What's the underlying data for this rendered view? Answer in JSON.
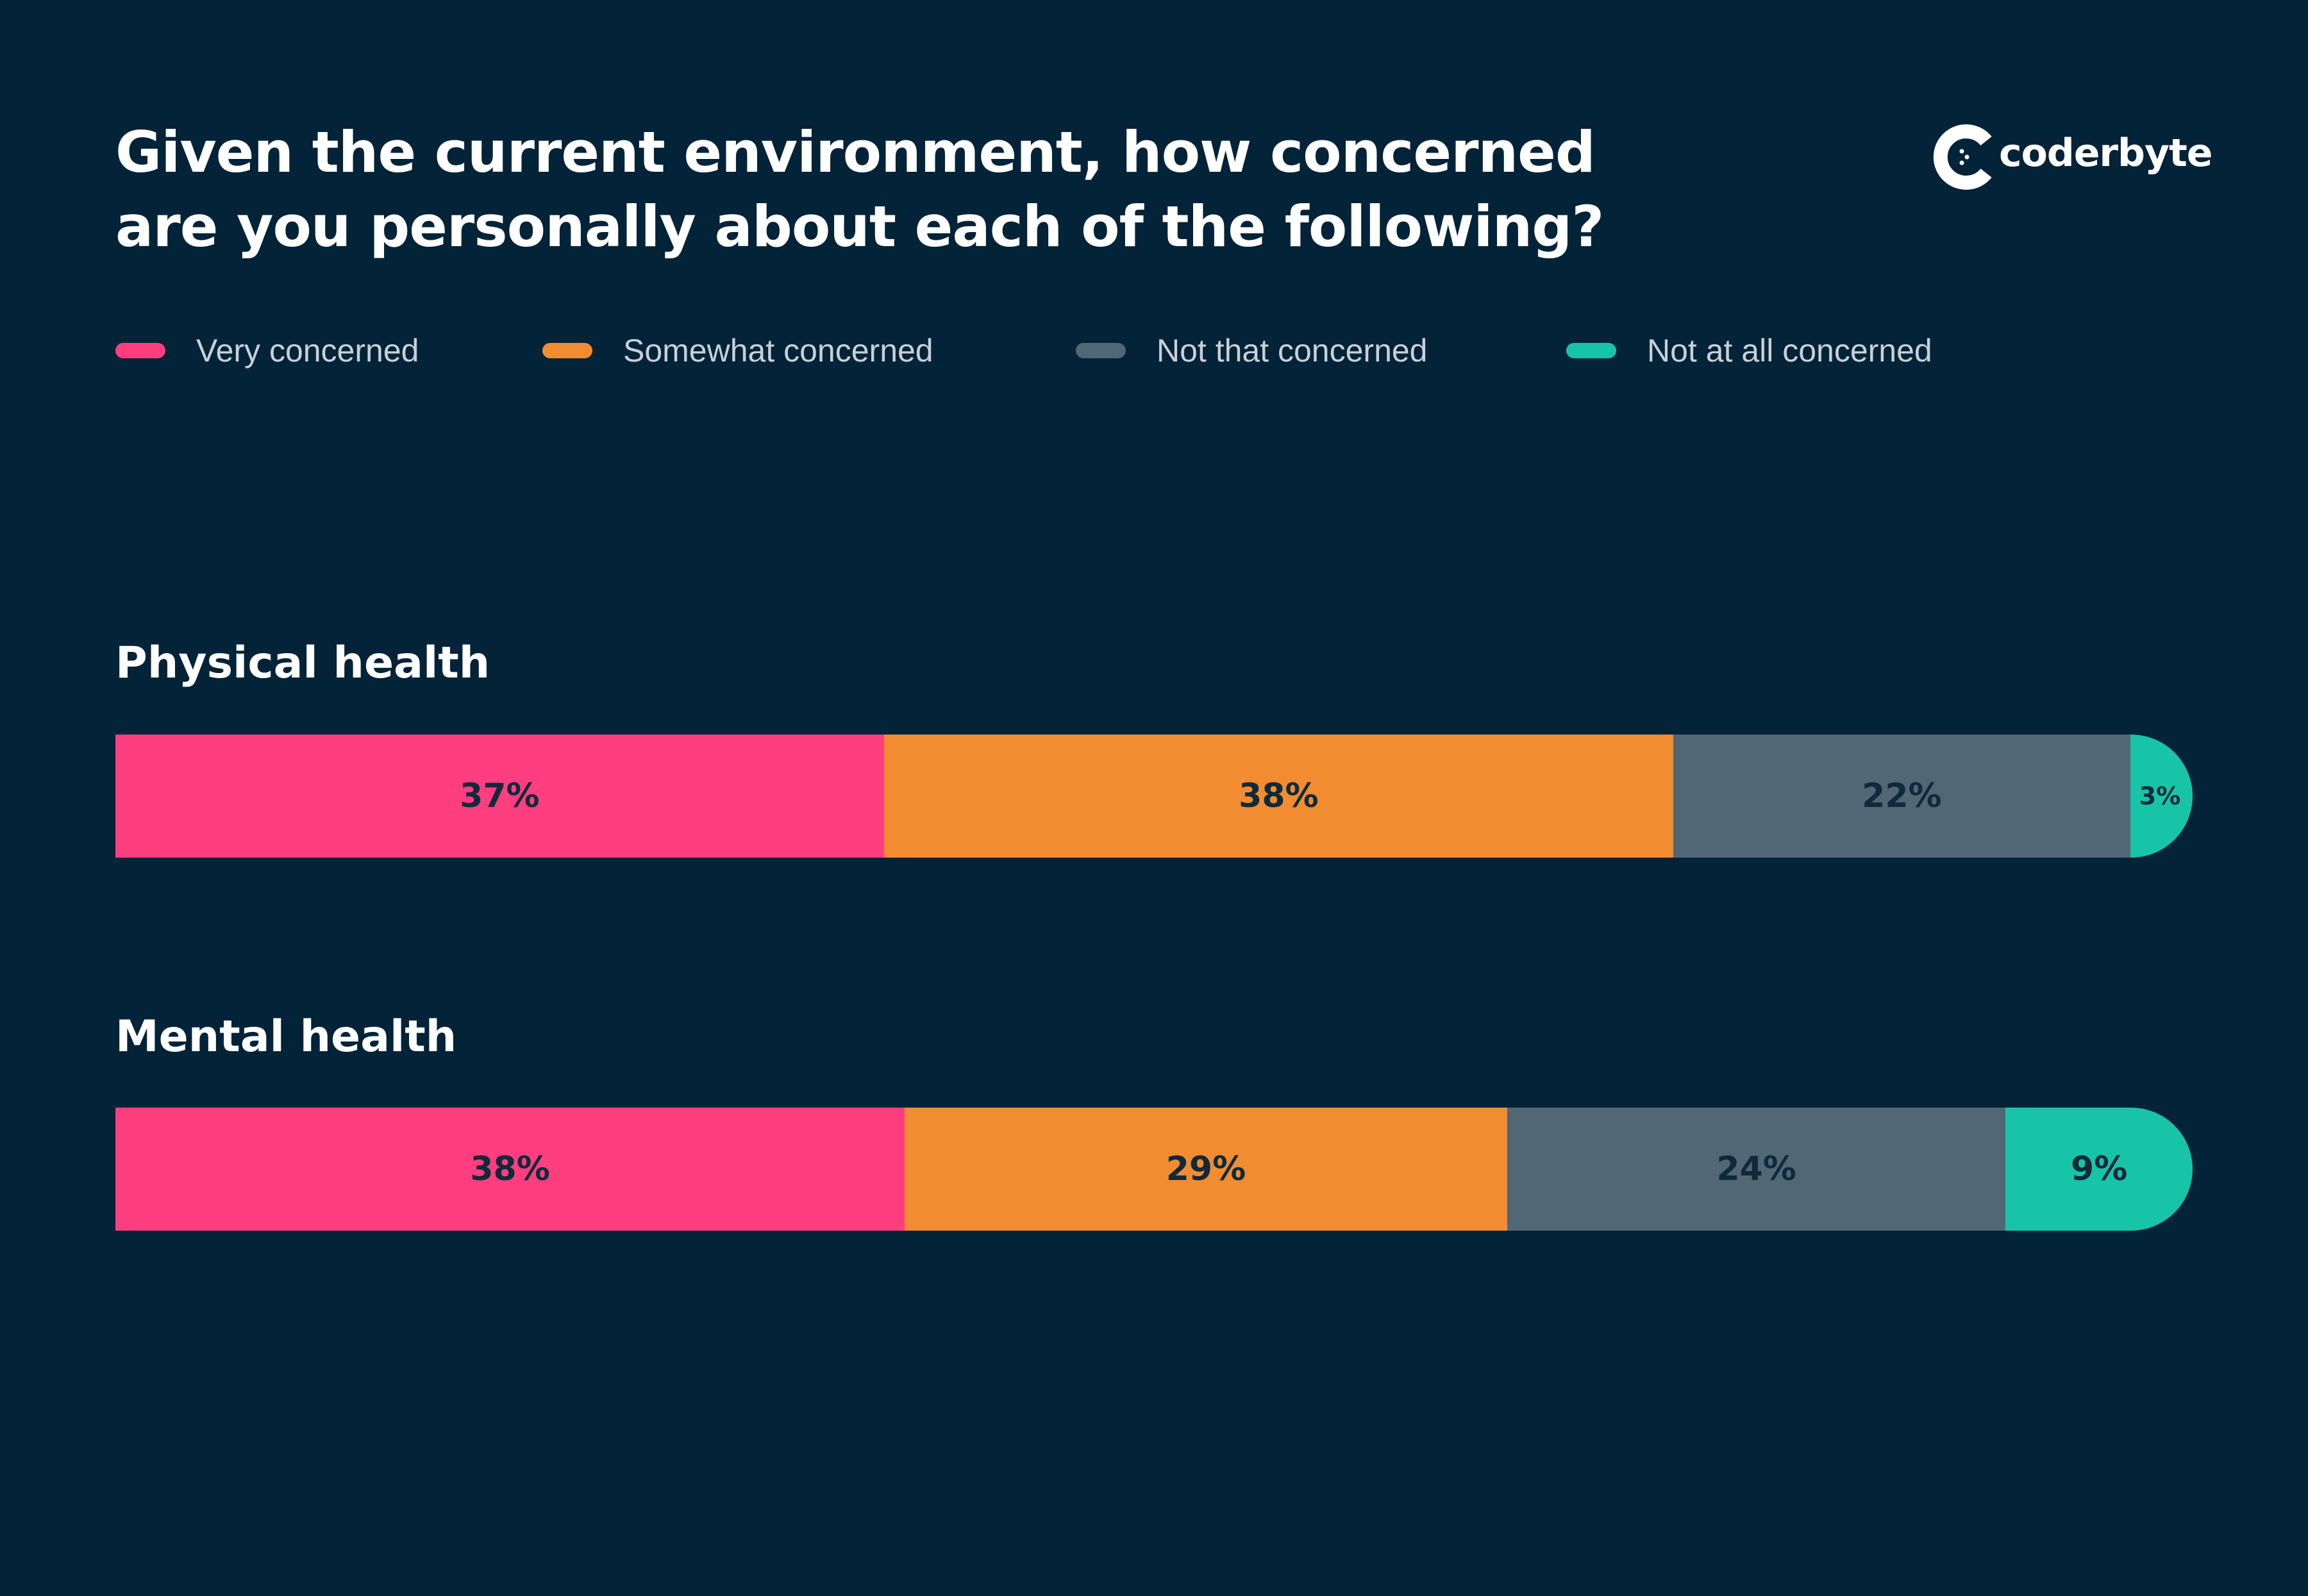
{
  "title_lines": [
    "Given the current environment, how concerned",
    "are you personally about each of the following?"
  ],
  "brand": {
    "name": "coderbyte"
  },
  "colors": {
    "background": "#032338",
    "very_concerned": "#FF3E80",
    "somewhat_concerned": "#F28C30",
    "not_that_concerned": "#516775",
    "not_at_all_concerned": "#17C4A8"
  },
  "chart_data": {
    "type": "bar",
    "orientation": "horizontal",
    "stacked": true,
    "title": "Given the current environment, how concerned are you personally about each of the following?",
    "categories": [
      "Physical health",
      "Mental health"
    ],
    "series": [
      {
        "name": "Very concerned",
        "values": [
          37,
          38
        ],
        "labels": [
          "37%",
          "38%"
        ],
        "color": "#FF3E80"
      },
      {
        "name": "Somewhat concerned",
        "values": [
          38,
          29
        ],
        "labels": [
          "38%",
          "29%"
        ],
        "color": "#F28C30"
      },
      {
        "name": "Not that concerned",
        "values": [
          22,
          24
        ],
        "labels": [
          "22%",
          "24%"
        ],
        "color": "#516775"
      },
      {
        "name": "Not at all concerned",
        "values": [
          3,
          9
        ],
        "labels": [
          "3%",
          "9%"
        ],
        "color": "#17C4A8"
      }
    ],
    "xlim": [
      0,
      100
    ],
    "legend": "top",
    "grid": false
  }
}
